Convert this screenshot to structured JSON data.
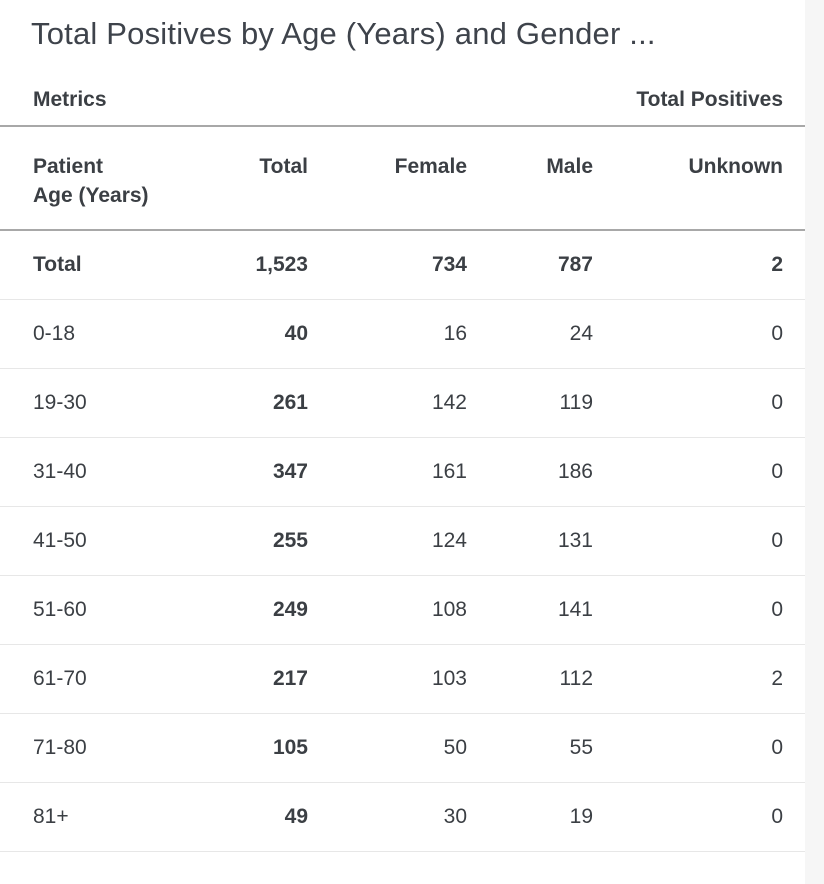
{
  "widget": {
    "title": "Total Positives by Age (Years) and Gender ...",
    "metrics_label": "Metrics",
    "metrics_value": "Total Positives"
  },
  "table": {
    "headers": {
      "age": "Patient\nAge (Years)",
      "total": "Total",
      "female": "Female",
      "male": "Male",
      "unknown": "Unknown"
    },
    "rows": [
      [
        "Total",
        "1,523",
        "734",
        "787",
        "2"
      ],
      [
        "0-18",
        "40",
        "16",
        "24",
        "0"
      ],
      [
        "19-30",
        "261",
        "142",
        "119",
        "0"
      ],
      [
        "31-40",
        "347",
        "161",
        "186",
        "0"
      ],
      [
        "41-50",
        "255",
        "124",
        "131",
        "0"
      ],
      [
        "51-60",
        "249",
        "108",
        "141",
        "0"
      ],
      [
        "61-70",
        "217",
        "103",
        "112",
        "2"
      ],
      [
        "71-80",
        "105",
        "50",
        "55",
        "0"
      ],
      [
        "81+",
        "49",
        "30",
        "19",
        "0"
      ]
    ]
  },
  "chart_data": {
    "type": "table",
    "title": "Total Positives by Age (Years) and Gender ...",
    "metric": "Total Positives",
    "columns": [
      "Patient Age (Years)",
      "Total",
      "Female",
      "Male",
      "Unknown"
    ],
    "rows": [
      {
        "age": "Total",
        "total": 1523,
        "female": 734,
        "male": 787,
        "unknown": 2
      },
      {
        "age": "0-18",
        "total": 40,
        "female": 16,
        "male": 24,
        "unknown": 0
      },
      {
        "age": "19-30",
        "total": 261,
        "female": 142,
        "male": 119,
        "unknown": 0
      },
      {
        "age": "31-40",
        "total": 347,
        "female": 161,
        "male": 186,
        "unknown": 0
      },
      {
        "age": "41-50",
        "total": 255,
        "female": 124,
        "male": 131,
        "unknown": 0
      },
      {
        "age": "51-60",
        "total": 249,
        "female": 108,
        "male": 141,
        "unknown": 0
      },
      {
        "age": "61-70",
        "total": 217,
        "female": 103,
        "male": 112,
        "unknown": 2
      },
      {
        "age": "71-80",
        "total": 105,
        "female": 50,
        "male": 55,
        "unknown": 0
      },
      {
        "age": "81+",
        "total": 49,
        "female": 30,
        "male": 19,
        "unknown": 0
      }
    ],
    "colors": {
      "text": "#3b3f44",
      "heavy_border": "#a8a8a8",
      "light_border": "#e7e7e7",
      "gutter_background": "#f6f6f6",
      "background": "#ffffff"
    }
  }
}
